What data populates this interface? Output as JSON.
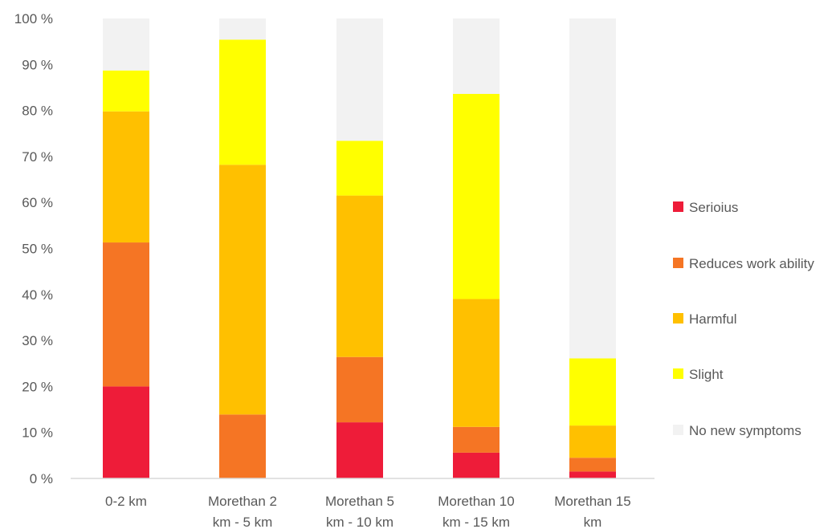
{
  "chart_data": {
    "type": "bar",
    "stacked": true,
    "percent": true,
    "categories": [
      [
        "0-2 km"
      ],
      [
        "Morethan 2",
        "km - 5 km"
      ],
      [
        "Morethan 5",
        "km - 10 km"
      ],
      [
        "Morethan 10",
        "km - 15 km"
      ],
      [
        "Morethan 15",
        "km"
      ]
    ],
    "series": [
      {
        "name": "Serioius",
        "color": "#ee1c39",
        "values": [
          20,
          0,
          12.2,
          5.6,
          1.5
        ]
      },
      {
        "name": "Reduces work ability",
        "color": "#f57524",
        "values": [
          31.3,
          13.9,
          14.2,
          5.6,
          3.0
        ]
      },
      {
        "name": "Harmful",
        "color": "#ffc000",
        "values": [
          28.5,
          54.3,
          35.1,
          27.8,
          7.0
        ]
      },
      {
        "name": "Slight",
        "color": "#ffff00",
        "values": [
          8.9,
          27.2,
          11.9,
          44.6,
          14.6
        ]
      },
      {
        "name": "No new symptoms",
        "color": "#f2f2f2",
        "values": [
          11.3,
          4.6,
          26.6,
          16.4,
          73.9
        ]
      }
    ],
    "y_ticks": [
      "0 %",
      "10 %",
      "20 %",
      "30 %",
      "40 %",
      "50 %",
      "60 %",
      "70 %",
      "80 %",
      "90 %",
      "100 %"
    ],
    "ylim": [
      0,
      100
    ],
    "grid": false,
    "legend_position": "right",
    "title": "",
    "xlabel": "",
    "ylabel": ""
  }
}
